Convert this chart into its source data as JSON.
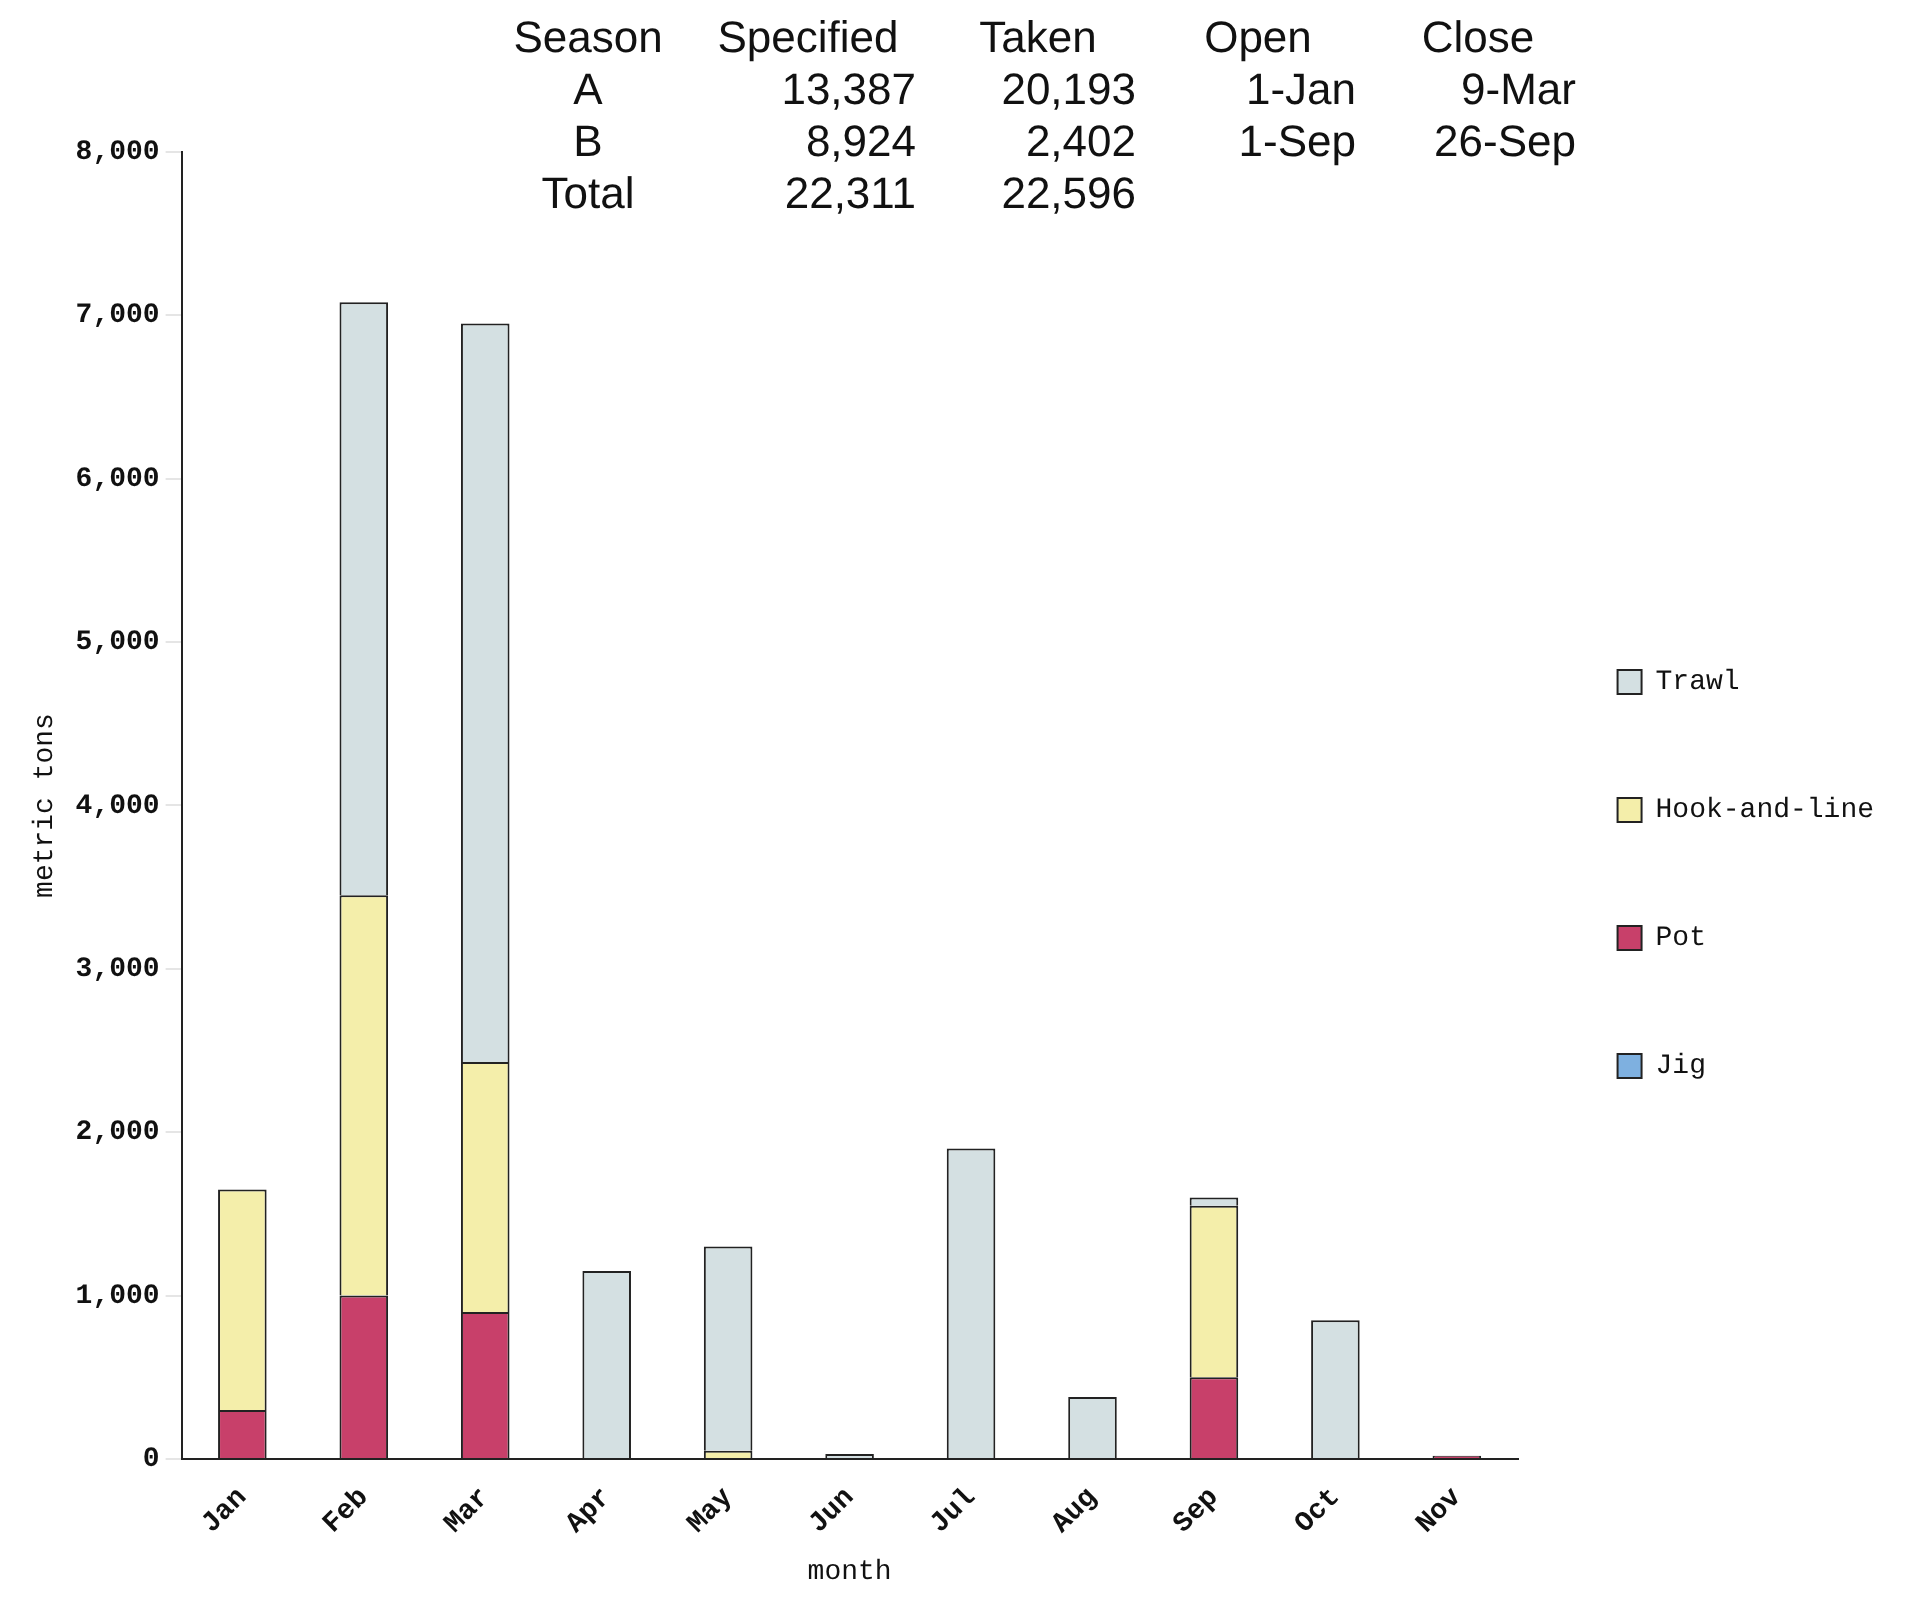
{
  "chart_data": {
    "type": "bar",
    "stacked": true,
    "xlabel": "month",
    "ylabel": "metric tons",
    "categories": [
      "Jan",
      "Feb",
      "Mar",
      "Apr",
      "May",
      "Jun",
      "Jul",
      "Aug",
      "Sep",
      "Oct",
      "Nov"
    ],
    "series": [
      {
        "name": "Jig",
        "color": "#7eb0e0",
        "values": [
          0,
          0,
          0,
          0,
          0,
          0,
          0,
          0,
          0,
          0,
          0
        ]
      },
      {
        "name": "Pot",
        "color": "#c8406a",
        "values": [
          300,
          1000,
          900,
          0,
          0,
          0,
          0,
          0,
          500,
          0,
          20
        ]
      },
      {
        "name": "Hook-and-line",
        "color": "#f4eeaa",
        "values": [
          1350,
          2450,
          1530,
          0,
          50,
          0,
          0,
          0,
          1050,
          0,
          0
        ]
      },
      {
        "name": "Trawl",
        "color": "#d4e0e2",
        "values": [
          0,
          3630,
          4520,
          1150,
          1250,
          30,
          1900,
          380,
          50,
          850,
          0
        ]
      }
    ],
    "ylim": [
      0,
      8000
    ],
    "yticks": [
      {
        "value": 0,
        "label": "0"
      },
      {
        "value": 1000,
        "label": "1,000"
      },
      {
        "value": 2000,
        "label": "2,000"
      },
      {
        "value": 3000,
        "label": "3,000"
      },
      {
        "value": 4000,
        "label": "4,000"
      },
      {
        "value": 5000,
        "label": "5,000"
      },
      {
        "value": 6000,
        "label": "6,000"
      },
      {
        "value": 7000,
        "label": "7,000"
      },
      {
        "value": 8000,
        "label": "8,000"
      }
    ],
    "grid": false,
    "legend": "right",
    "annotations": [
      "Season",
      "Specified",
      "Taken",
      "Open",
      "Close",
      "A",
      "13,387",
      "20,193",
      "1-Jan",
      "9-Mar",
      "B",
      "8,924",
      "2,402",
      "1-Sep",
      "26-Sep",
      "Total",
      "22,311",
      "22,596"
    ]
  }
}
